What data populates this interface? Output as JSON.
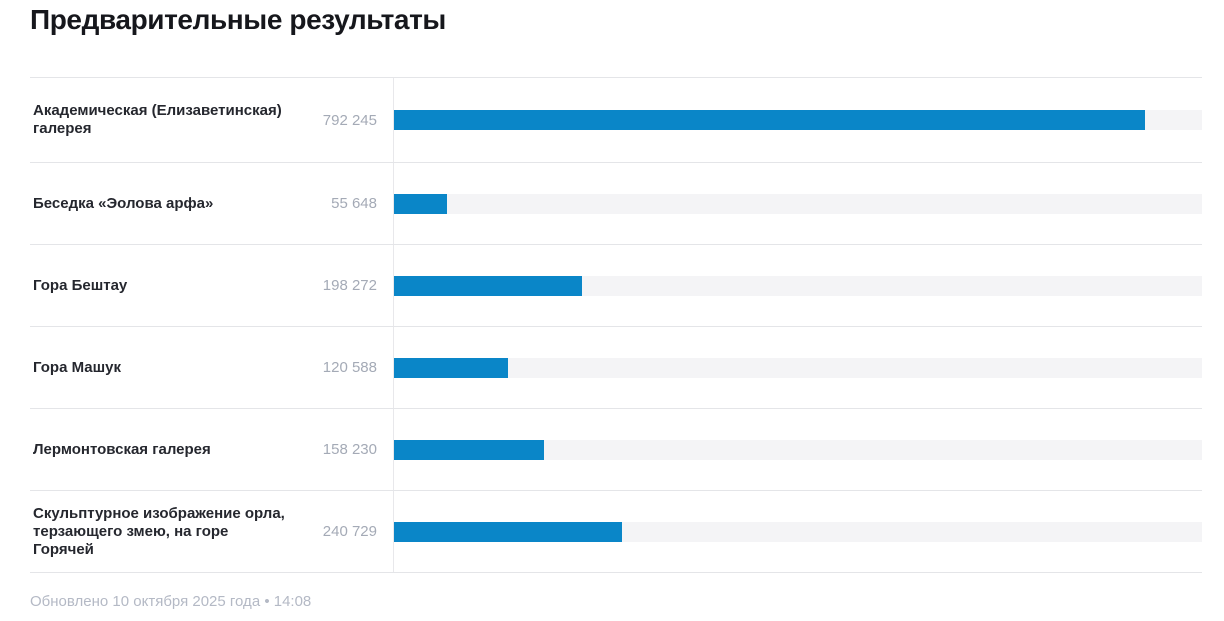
{
  "page": {
    "title": "Предварительные результаты"
  },
  "footer": {
    "updated_text": "Обновлено 10 октября 2025 года • 14:08"
  },
  "colors": {
    "bar_fill": "#0a86c8",
    "bar_track": "#f4f4f6",
    "label_text": "#25272e",
    "value_text": "#a4aab6",
    "divider": "#e4e5e8",
    "title_text": "#16171c",
    "footer_text": "#b4b9c5"
  },
  "chart_data": {
    "type": "bar",
    "orientation": "horizontal",
    "title": "Предварительные результаты",
    "categories": [
      "Академическая (Елизаветинская) галерея",
      "Беседка «Эолова арфа»",
      "Гора Бештау",
      "Гора Машук",
      "Лермонтовская галерея",
      "Скульптурное изображение орла, терзающего змею, на горе Горячей"
    ],
    "values": [
      792245,
      55648,
      198272,
      120588,
      158230,
      240729
    ],
    "value_labels": [
      "792 245",
      "55 648",
      "198 272",
      "120 588",
      "158 230",
      "240 729"
    ],
    "xlim": [
      0,
      852000
    ],
    "grid": false,
    "legend": "none",
    "bar_color": "#0a86c8",
    "updated": "Обновлено 10 октября 2025 года • 14:08"
  }
}
